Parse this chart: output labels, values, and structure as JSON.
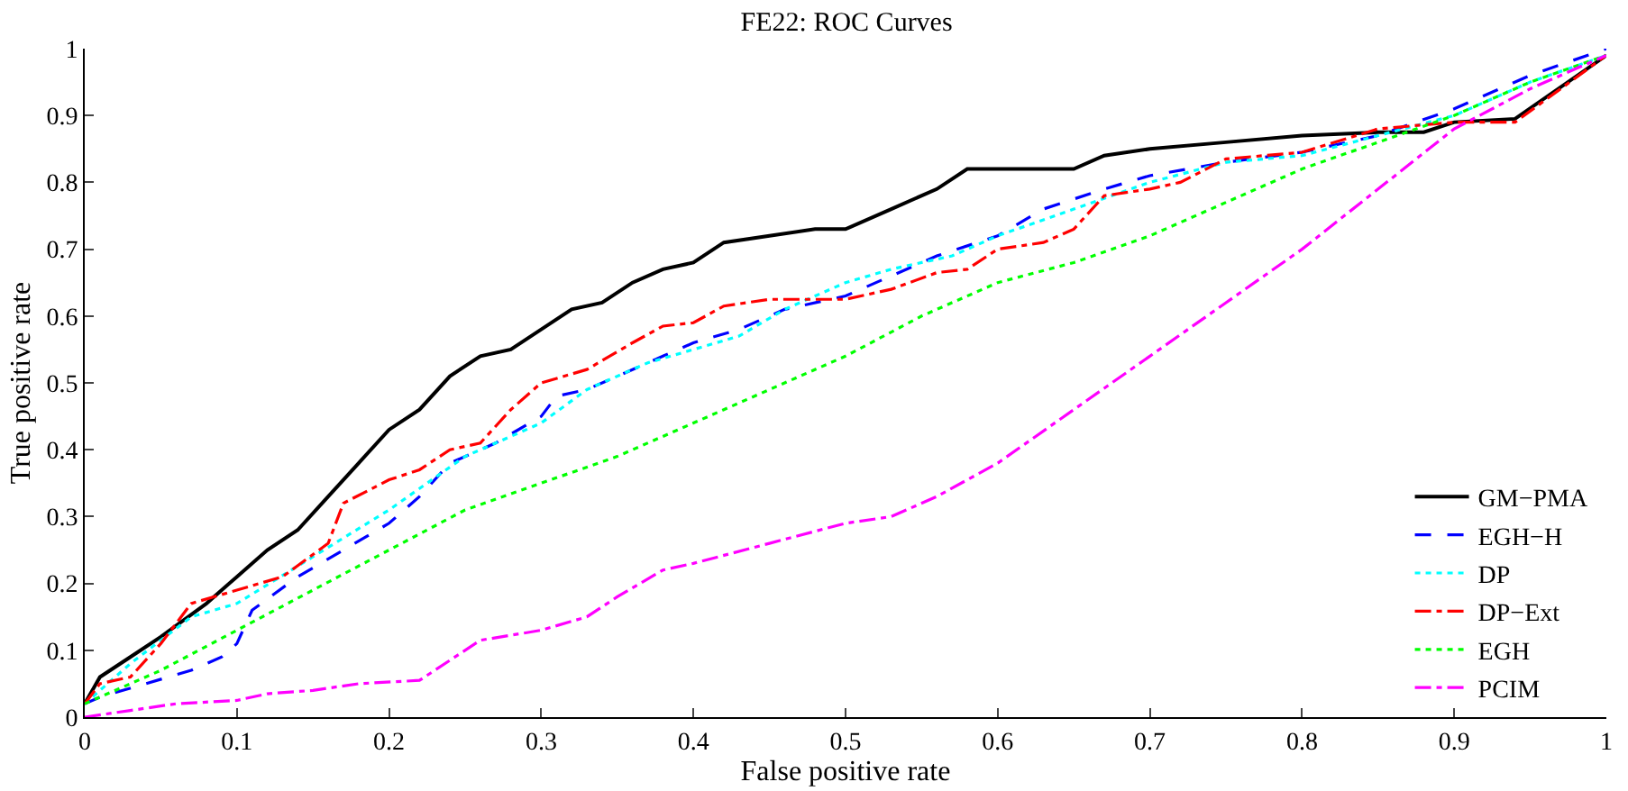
{
  "chart_data": {
    "type": "line",
    "title": "FE22: ROC Curves",
    "xlabel": "False positive rate",
    "ylabel": "True positive rate",
    "xlim": [
      0,
      1
    ],
    "ylim": [
      0,
      1
    ],
    "xticks": [
      0,
      0.1,
      0.2,
      0.3,
      0.4,
      0.5,
      0.6,
      0.7,
      0.8,
      0.9,
      1
    ],
    "yticks": [
      0,
      0.1,
      0.2,
      0.3,
      0.4,
      0.5,
      0.6,
      0.7,
      0.8,
      0.9,
      1
    ],
    "grid": false,
    "legend": "bottom right",
    "marker": "none",
    "series": [
      {
        "name": "GM−PMA",
        "color": "#000000",
        "line_style": "solid",
        "x": [
          0,
          0.01,
          0.03,
          0.05,
          0.08,
          0.1,
          0.12,
          0.14,
          0.16,
          0.18,
          0.2,
          0.22,
          0.24,
          0.26,
          0.28,
          0.3,
          0.32,
          0.34,
          0.36,
          0.38,
          0.4,
          0.42,
          0.45,
          0.48,
          0.5,
          0.53,
          0.56,
          0.58,
          0.6,
          0.65,
          0.67,
          0.7,
          0.75,
          0.8,
          0.85,
          0.88,
          0.9,
          0.94,
          1
        ],
        "values": [
          0.02,
          0.06,
          0.09,
          0.12,
          0.17,
          0.21,
          0.25,
          0.28,
          0.33,
          0.38,
          0.43,
          0.46,
          0.51,
          0.54,
          0.55,
          0.58,
          0.61,
          0.62,
          0.65,
          0.67,
          0.68,
          0.71,
          0.72,
          0.73,
          0.73,
          0.76,
          0.79,
          0.82,
          0.82,
          0.82,
          0.84,
          0.85,
          0.86,
          0.87,
          0.875,
          0.875,
          0.89,
          0.895,
          0.99
        ]
      },
      {
        "name": "EGH−H",
        "color": "#0000ff",
        "line_style": "dashed",
        "x": [
          0,
          0.01,
          0.04,
          0.07,
          0.09,
          0.1,
          0.11,
          0.14,
          0.17,
          0.2,
          0.22,
          0.24,
          0.27,
          0.3,
          0.31,
          0.33,
          0.35,
          0.38,
          0.4,
          0.43,
          0.46,
          0.5,
          0.53,
          0.56,
          0.6,
          0.63,
          0.67,
          0.7,
          0.75,
          0.8,
          0.85,
          0.9,
          0.95,
          1
        ],
        "values": [
          0.02,
          0.03,
          0.05,
          0.07,
          0.09,
          0.11,
          0.16,
          0.21,
          0.25,
          0.29,
          0.33,
          0.38,
          0.41,
          0.45,
          0.48,
          0.49,
          0.51,
          0.54,
          0.56,
          0.58,
          0.61,
          0.63,
          0.66,
          0.69,
          0.72,
          0.76,
          0.79,
          0.81,
          0.83,
          0.845,
          0.87,
          0.91,
          0.96,
          1.0
        ]
      },
      {
        "name": "DP",
        "color": "#00ffff",
        "line_style": "dotted",
        "x": [
          0,
          0.03,
          0.07,
          0.1,
          0.15,
          0.2,
          0.25,
          0.3,
          0.33,
          0.37,
          0.4,
          0.43,
          0.46,
          0.5,
          0.53,
          0.57,
          0.6,
          0.65,
          0.7,
          0.75,
          0.8,
          0.85,
          0.9,
          0.95,
          1
        ],
        "values": [
          0.02,
          0.08,
          0.15,
          0.17,
          0.24,
          0.31,
          0.39,
          0.44,
          0.49,
          0.53,
          0.55,
          0.57,
          0.61,
          0.65,
          0.67,
          0.69,
          0.72,
          0.76,
          0.8,
          0.83,
          0.84,
          0.87,
          0.9,
          0.95,
          0.99
        ]
      },
      {
        "name": "DP−Ext",
        "color": "#ff0000",
        "line_style": "dashdot",
        "x": [
          0,
          0.01,
          0.03,
          0.05,
          0.07,
          0.1,
          0.13,
          0.16,
          0.17,
          0.2,
          0.22,
          0.24,
          0.26,
          0.28,
          0.3,
          0.33,
          0.36,
          0.38,
          0.4,
          0.42,
          0.45,
          0.5,
          0.53,
          0.56,
          0.58,
          0.6,
          0.63,
          0.65,
          0.67,
          0.7,
          0.72,
          0.75,
          0.8,
          0.85,
          0.9,
          0.94,
          1
        ],
        "values": [
          0.02,
          0.05,
          0.06,
          0.11,
          0.17,
          0.19,
          0.21,
          0.26,
          0.32,
          0.355,
          0.37,
          0.4,
          0.41,
          0.46,
          0.5,
          0.52,
          0.56,
          0.585,
          0.59,
          0.615,
          0.625,
          0.625,
          0.64,
          0.665,
          0.67,
          0.7,
          0.71,
          0.73,
          0.78,
          0.79,
          0.8,
          0.835,
          0.845,
          0.88,
          0.89,
          0.89,
          0.99
        ]
      },
      {
        "name": "EGH",
        "color": "#00ff00",
        "line_style": "dotted",
        "x": [
          0,
          0.05,
          0.1,
          0.15,
          0.2,
          0.25,
          0.3,
          0.35,
          0.4,
          0.45,
          0.5,
          0.55,
          0.6,
          0.65,
          0.7,
          0.75,
          0.8,
          0.85,
          0.9,
          0.95,
          1
        ],
        "values": [
          0.02,
          0.07,
          0.13,
          0.19,
          0.25,
          0.31,
          0.35,
          0.39,
          0.44,
          0.49,
          0.54,
          0.6,
          0.65,
          0.68,
          0.72,
          0.77,
          0.82,
          0.86,
          0.9,
          0.95,
          0.99
        ]
      },
      {
        "name": "PCIM",
        "color": "#ff00ff",
        "line_style": "dashdot",
        "x": [
          0,
          0.03,
          0.06,
          0.1,
          0.12,
          0.15,
          0.18,
          0.22,
          0.24,
          0.26,
          0.3,
          0.33,
          0.35,
          0.38,
          0.4,
          0.45,
          0.5,
          0.53,
          0.56,
          0.6,
          0.65,
          0.7,
          0.75,
          0.8,
          0.85,
          0.9,
          0.95,
          1
        ],
        "values": [
          0,
          0.01,
          0.02,
          0.025,
          0.035,
          0.04,
          0.05,
          0.055,
          0.085,
          0.115,
          0.13,
          0.15,
          0.18,
          0.22,
          0.23,
          0.26,
          0.29,
          0.3,
          0.33,
          0.38,
          0.46,
          0.54,
          0.62,
          0.7,
          0.79,
          0.88,
          0.94,
          0.99
        ]
      }
    ]
  }
}
